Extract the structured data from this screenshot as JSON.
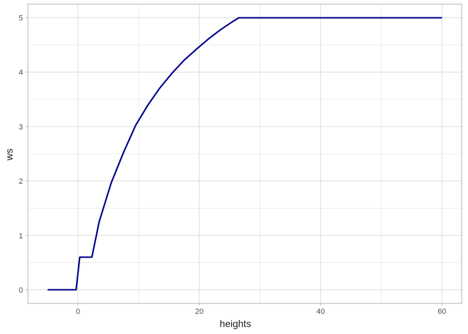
{
  "chart_data": {
    "type": "line",
    "title": "",
    "xlabel": "heights",
    "ylabel": "ws",
    "xlim": [
      -8.25,
      63.25
    ],
    "ylim": [
      -0.25,
      5.25
    ],
    "x_ticks": [
      0,
      20,
      40,
      60
    ],
    "x_minor_ticks": [
      -10,
      10,
      30,
      50
    ],
    "y_ticks": [
      0,
      1,
      2,
      3,
      4,
      5
    ],
    "grid": true,
    "legend": "none",
    "line_color": "#00008B",
    "grid_color": "#dcdcdc",
    "series": [
      {
        "x": [
          -5,
          -0.3,
          0.3,
          2.3,
          3.5,
          5.5,
          7.5,
          9.5,
          11.5,
          13.5,
          15.5,
          17.5,
          19.5,
          21.5,
          23.5,
          25.5,
          26.5,
          27,
          30,
          40,
          50,
          60
        ],
        "y": [
          0,
          0,
          0.6,
          0.6,
          1.25,
          1.97,
          2.52,
          3.02,
          3.39,
          3.71,
          3.98,
          4.22,
          4.42,
          4.61,
          4.78,
          4.93,
          5,
          5,
          5,
          5,
          5,
          5
        ]
      }
    ]
  }
}
